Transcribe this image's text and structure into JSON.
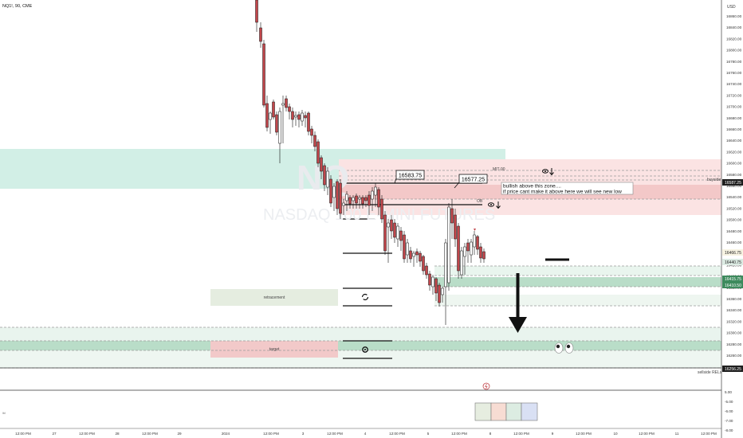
{
  "header": {
    "symbol": "NQ1!, 90, CME"
  },
  "price_axis": {
    "currency": "USD",
    "ticks": [
      "16860.00",
      "16840.00",
      "16820.00",
      "16800.00",
      "16780.00",
      "16760.00",
      "16740.00",
      "16720.00",
      "16700.00",
      "16680.00",
      "16660.00",
      "16640.00",
      "16620.00",
      "16600.00",
      "16580.00",
      "16560.00",
      "16540.00",
      "16520.00",
      "16500.00",
      "16480.00",
      "16460.00",
      "16440.00",
      "16420.00",
      "16400.00",
      "16380.00",
      "16360.00",
      "16340.00",
      "16320.00",
      "16300.00",
      "16280.00",
      "16260.00",
      "16240.00"
    ],
    "badges": {
      "b1": "16587.25",
      "b2": "16466.75",
      "b3": "16440.75",
      "b4": "16415.75",
      "b5": "16410.50",
      "b6": "16256.25"
    }
  },
  "indicator_axis": {
    "ticks": [
      "5.00",
      "-5.00",
      "-6.00",
      "-7.00",
      "-8.00"
    ]
  },
  "time_axis": {
    "ticks": [
      "12:00 PM",
      "27",
      "12:00 PM",
      "28",
      "12:00 PM",
      "29",
      "2024",
      "12:00 PM",
      "3",
      "12:00 PM",
      "4",
      "12:00 PM",
      "5",
      "12:00 PM",
      "8",
      "12:00 PM",
      "9",
      "12:00 PM",
      "10",
      "12:00 PM",
      "11",
      "12:00 PM"
    ]
  },
  "watermark": {
    "big": "NQ",
    "sub": "NASDAQ 100 E-MINI FUTURES"
  },
  "annotations": {
    "price_label_1": "16583.75",
    "price_label_2": "16577.25",
    "callout_line1": "bullish above this zone....",
    "callout_line2": "if price cant make it above here we will see new low",
    "msb": "MIT-90",
    "ob": "OB",
    "buyside": "buyside",
    "sellside": "sellside RELs",
    "retracement": "retracement",
    "target": "target",
    "left_hint": "lbl"
  },
  "colors": {
    "bull": "#ffffff",
    "bear": "#c2464b",
    "teal_zone": "#cfeee5",
    "red_zone": "#f7d9d9",
    "green_zone": "#b7dcc6"
  }
}
